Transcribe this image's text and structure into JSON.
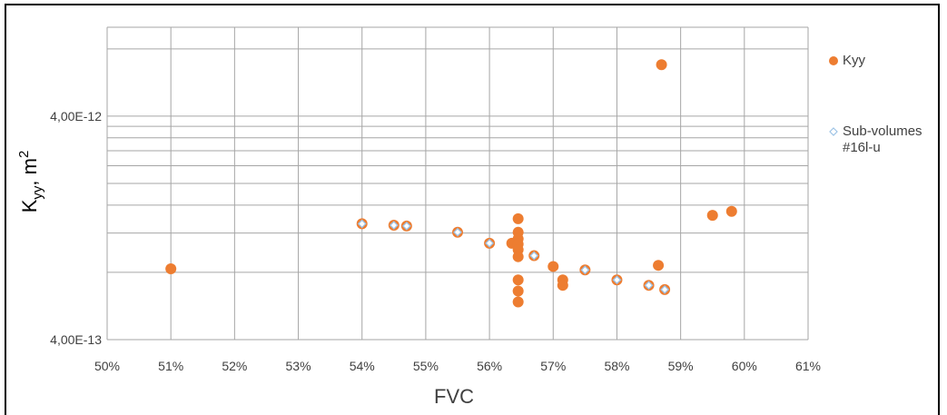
{
  "chart_data": {
    "type": "scatter",
    "x_label": "FVC",
    "y_label": [
      "K",
      "yy",
      ", m",
      "2"
    ],
    "xlim": [
      50,
      61
    ],
    "xticks": [
      {
        "value": 50,
        "label": "50%"
      },
      {
        "value": 51,
        "label": "51%"
      },
      {
        "value": 52,
        "label": "52%"
      },
      {
        "value": 53,
        "label": "53%"
      },
      {
        "value": 54,
        "label": "54%"
      },
      {
        "value": 55,
        "label": "55%"
      },
      {
        "value": 56,
        "label": "56%"
      },
      {
        "value": 57,
        "label": "57%"
      },
      {
        "value": 58,
        "label": "58%"
      },
      {
        "value": 59,
        "label": "59%"
      },
      {
        "value": 60,
        "label": "60%"
      },
      {
        "value": 61,
        "label": "61%"
      }
    ],
    "ylim": [
      4e-13,
      1e-11
    ],
    "y_log": true,
    "yticks": [
      {
        "value": 4e-13,
        "label": "4,00E-13"
      },
      {
        "value": 4e-12,
        "label": "4,00E-12"
      }
    ],
    "y_minor_grid": [
      8e-13,
      1.2e-12,
      1.6e-12,
      2e-12,
      2.4e-12,
      2.8e-12,
      3.2e-12,
      3.6e-12,
      8e-12
    ],
    "grid": true,
    "legend": "right",
    "series": [
      {
        "name": "Kyy",
        "color": "#ed7d31",
        "marker": "circle",
        "x": [
          51.0,
          54.0,
          54.5,
          54.7,
          55.5,
          56.0,
          56.35,
          56.45,
          56.45,
          56.45,
          56.45,
          56.45,
          56.45,
          56.45,
          56.45,
          56.45,
          56.7,
          57.0,
          57.15,
          57.15,
          57.5,
          58.0,
          58.5,
          58.65,
          58.75,
          58.7,
          59.5,
          59.8
        ],
        "values": [
          8.3e-13,
          1.32e-12,
          1.3e-12,
          1.29e-12,
          1.21e-12,
          1.08e-12,
          1.08e-12,
          1.39e-12,
          1.21e-12,
          1.13e-12,
          1.07e-12,
          1.01e-12,
          9.4e-13,
          7.4e-13,
          6.6e-13,
          5.9e-13,
          9.5e-13,
          8.5e-13,
          7.4e-13,
          7e-13,
          8.2e-13,
          7.4e-13,
          7e-13,
          8.6e-13,
          6.7e-13,
          6.8e-12,
          1.44e-12,
          1.5e-12
        ]
      },
      {
        "name": "Sub-volumes #16l-u",
        "color": "#9dc3e6",
        "marker": "diamond",
        "x": [
          54.0,
          54.5,
          54.7,
          55.5,
          56.0,
          56.7,
          57.5,
          58.0,
          58.5,
          58.75
        ],
        "values": [
          1.32e-12,
          1.3e-12,
          1.29e-12,
          1.21e-12,
          1.08e-12,
          9.5e-13,
          8.2e-13,
          7.4e-13,
          7e-13,
          6.7e-13
        ]
      }
    ]
  }
}
